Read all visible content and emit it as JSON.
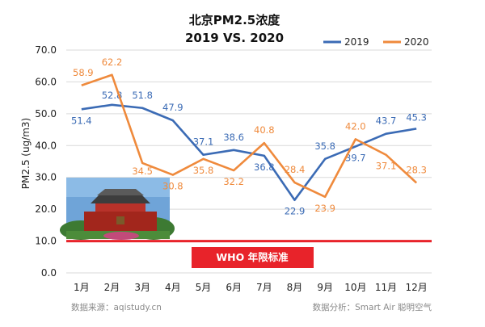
{
  "chart_data": {
    "type": "line",
    "title": "北京PM2.5浓度",
    "subtitle": "2019 VS. 2020",
    "ylabel": "PM2.5 (ug/m3)",
    "xlabel": "",
    "categories": [
      "1月",
      "2月",
      "3月",
      "4月",
      "5月",
      "6月",
      "7月",
      "8月",
      "9月",
      "10月",
      "11月",
      "12月"
    ],
    "ylim": [
      0,
      70
    ],
    "yticks": [
      "0.0",
      "10.0",
      "20.0",
      "30.0",
      "40.0",
      "50.0",
      "60.0",
      "70.0"
    ],
    "grid": "horizontal",
    "legend_position": "top-right",
    "series": [
      {
        "name": "2019",
        "color": "#3b6bb5",
        "values": [
          51.4,
          52.8,
          51.8,
          47.9,
          37.1,
          38.6,
          36.8,
          22.9,
          35.8,
          39.7,
          43.7,
          45.3
        ],
        "labels": [
          "51.4",
          "52.8",
          "51.8",
          "47.9",
          "37.1",
          "38.6",
          "36.8",
          "22.9",
          "35.8",
          "39.7",
          "43.7",
          "45.3"
        ]
      },
      {
        "name": "2020",
        "color": "#ef8a3c",
        "values": [
          58.9,
          62.2,
          34.5,
          30.8,
          35.8,
          32.2,
          40.8,
          28.4,
          23.9,
          42.0,
          37.1,
          28.3
        ],
        "labels": [
          "58.9",
          "62.2",
          "34.5",
          "30.8",
          "35.8",
          "32.2",
          "40.8",
          "28.4",
          "23.9",
          "42.0",
          "37.1",
          "28.3"
        ]
      }
    ],
    "reference_line": {
      "value": 10,
      "label": "WHO 年限标准",
      "color": "#e8232a"
    },
    "sources": {
      "left": "数据来源：aqistudy.cn",
      "right": "数据分析：Smart Air  聪明空气"
    }
  }
}
